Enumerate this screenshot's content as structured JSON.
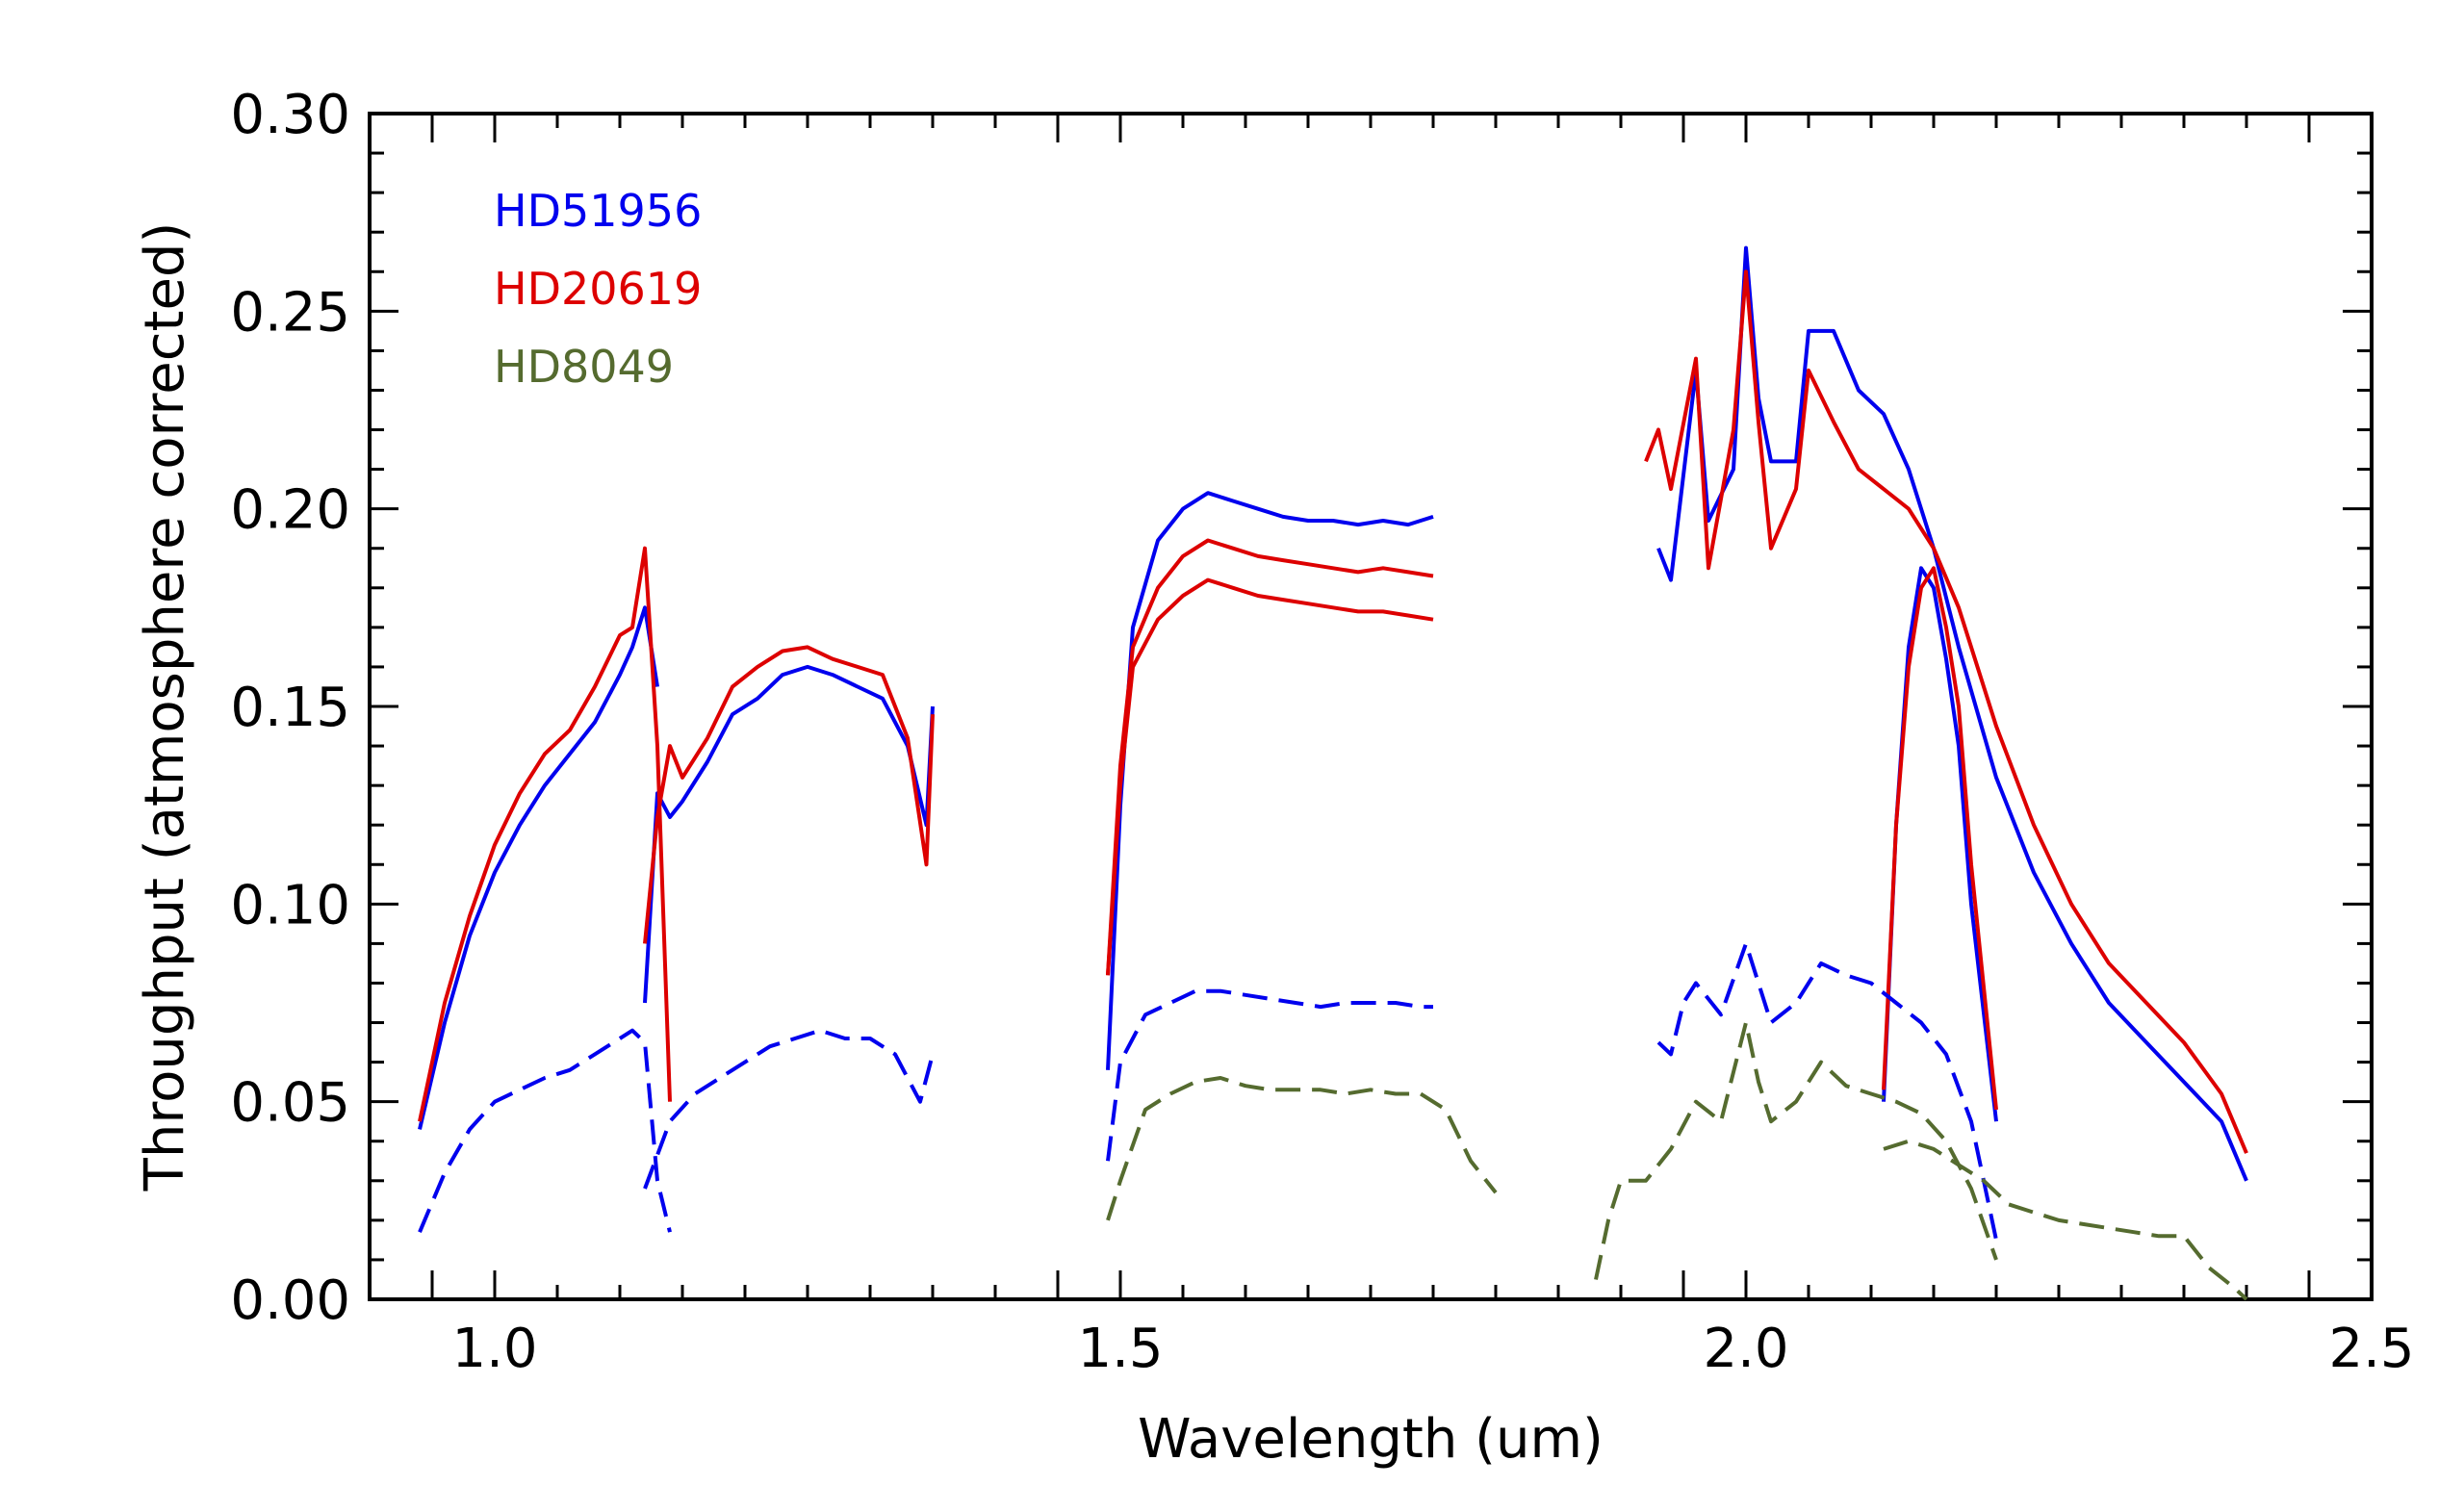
{
  "chart_data": {
    "type": "line",
    "title": "",
    "xlabel": "Wavelength (um)",
    "ylabel": "Throughput (atmosphere corrected)",
    "xlim": [
      0.9,
      2.5
    ],
    "ylim": [
      0.0,
      0.3
    ],
    "xticks": [
      1.0,
      1.5,
      2.0,
      2.5
    ],
    "xtick_labels": [
      "1.0",
      "1.5",
      "2.0",
      "2.5"
    ],
    "yticks": [
      0.0,
      0.05,
      0.1,
      0.15,
      0.2,
      0.25,
      0.3
    ],
    "ytick_labels": [
      "0.00",
      "0.05",
      "0.10",
      "0.15",
      "0.20",
      "0.25",
      "0.30"
    ],
    "grid": false,
    "legend_position": "top-left",
    "colors": {
      "HD51956": "#0000ee",
      "HD20619": "#dd0000",
      "HD8049": "#556b2f"
    },
    "legend": [
      {
        "label": "HD51956",
        "color": "#0000ee"
      },
      {
        "label": "HD20619",
        "color": "#dd0000"
      },
      {
        "label": "HD8049",
        "color": "#556b2f"
      }
    ],
    "series": [
      {
        "color": "#0000ee",
        "style": "solid",
        "x": [
          0.94,
          0.96,
          0.98,
          1.0,
          1.02,
          1.04,
          1.06,
          1.08,
          1.1,
          1.11,
          1.12,
          1.13
        ],
        "y": [
          0.043,
          0.07,
          0.092,
          0.108,
          0.12,
          0.13,
          0.138,
          0.146,
          0.158,
          0.165,
          0.175,
          0.155
        ]
      },
      {
        "color": "#0000ee",
        "style": "solid",
        "x": [
          1.12,
          1.13,
          1.14,
          1.15,
          1.17,
          1.19,
          1.21,
          1.23,
          1.25,
          1.27,
          1.29,
          1.31,
          1.33,
          1.345,
          1.35
        ],
        "y": [
          0.075,
          0.128,
          0.122,
          0.126,
          0.136,
          0.148,
          0.152,
          0.158,
          0.16,
          0.158,
          0.155,
          0.152,
          0.14,
          0.12,
          0.15
        ]
      },
      {
        "color": "#0000ee",
        "style": "solid",
        "x": [
          1.49,
          1.5,
          1.51,
          1.53,
          1.55,
          1.57,
          1.59,
          1.61,
          1.63,
          1.65,
          1.67,
          1.69,
          1.71,
          1.73,
          1.75
        ],
        "y": [
          0.058,
          0.125,
          0.17,
          0.192,
          0.2,
          0.204,
          0.202,
          0.2,
          0.198,
          0.197,
          0.197,
          0.196,
          0.197,
          0.196,
          0.198
        ]
      },
      {
        "color": "#0000ee",
        "style": "solid",
        "x": [
          1.93,
          1.94,
          1.96,
          1.97,
          1.99,
          2.0,
          2.01,
          2.02,
          2.04,
          2.05,
          2.07,
          2.09,
          2.11,
          2.13,
          2.15,
          2.17,
          2.2,
          2.23,
          2.26,
          2.29,
          2.32,
          2.35,
          2.38,
          2.4
        ],
        "y": [
          0.19,
          0.182,
          0.235,
          0.197,
          0.21,
          0.266,
          0.228,
          0.212,
          0.212,
          0.245,
          0.245,
          0.23,
          0.224,
          0.21,
          0.19,
          0.165,
          0.132,
          0.108,
          0.09,
          0.075,
          0.065,
          0.055,
          0.045,
          0.03
        ]
      },
      {
        "color": "#0000ee",
        "style": "solid",
        "x": [
          2.11,
          2.12,
          2.13,
          2.14,
          2.15,
          2.16,
          2.17,
          2.18,
          2.2
        ],
        "y": [
          0.05,
          0.12,
          0.165,
          0.185,
          0.18,
          0.162,
          0.14,
          0.1,
          0.045
        ]
      },
      {
        "color": "#dd0000",
        "style": "solid",
        "x": [
          0.94,
          0.96,
          0.98,
          1.0,
          1.02,
          1.04,
          1.06,
          1.08,
          1.1,
          1.11,
          1.12,
          1.13,
          1.14
        ],
        "y": [
          0.045,
          0.075,
          0.097,
          0.115,
          0.128,
          0.138,
          0.144,
          0.155,
          0.168,
          0.17,
          0.19,
          0.14,
          0.05
        ]
      },
      {
        "color": "#dd0000",
        "style": "solid",
        "x": [
          1.12,
          1.13,
          1.14,
          1.15,
          1.17,
          1.19,
          1.21,
          1.23,
          1.25,
          1.27,
          1.29,
          1.31,
          1.33,
          1.345,
          1.35
        ],
        "y": [
          0.09,
          0.122,
          0.14,
          0.132,
          0.142,
          0.155,
          0.16,
          0.164,
          0.165,
          0.162,
          0.16,
          0.158,
          0.142,
          0.11,
          0.148
        ]
      },
      {
        "color": "#dd0000",
        "style": "solid",
        "x": [
          1.49,
          1.5,
          1.51,
          1.53,
          1.55,
          1.57,
          1.59,
          1.61,
          1.63,
          1.65,
          1.67,
          1.69,
          1.71,
          1.73,
          1.75
        ],
        "y": [
          0.082,
          0.135,
          0.165,
          0.18,
          0.188,
          0.192,
          0.19,
          0.188,
          0.187,
          0.186,
          0.185,
          0.184,
          0.185,
          0.184,
          0.183
        ]
      },
      {
        "color": "#dd0000",
        "style": "solid",
        "x": [
          1.49,
          1.5,
          1.51,
          1.53,
          1.55,
          1.57,
          1.59,
          1.61,
          1.63,
          1.65,
          1.67,
          1.69,
          1.71,
          1.73,
          1.75
        ],
        "y": [
          0.082,
          0.13,
          0.16,
          0.172,
          0.178,
          0.182,
          0.18,
          0.178,
          0.177,
          0.176,
          0.175,
          0.174,
          0.174,
          0.173,
          0.172
        ]
      },
      {
        "color": "#dd0000",
        "style": "solid",
        "x": [
          1.92,
          1.93,
          1.94,
          1.96,
          1.97,
          1.99,
          2.0,
          2.01,
          2.02,
          2.04,
          2.05,
          2.07,
          2.09,
          2.11,
          2.13,
          2.15,
          2.17,
          2.2,
          2.23,
          2.26,
          2.29,
          2.32,
          2.35,
          2.38,
          2.4
        ],
        "y": [
          0.212,
          0.22,
          0.205,
          0.238,
          0.185,
          0.22,
          0.26,
          0.222,
          0.19,
          0.205,
          0.235,
          0.222,
          0.21,
          0.205,
          0.2,
          0.19,
          0.175,
          0.145,
          0.12,
          0.1,
          0.085,
          0.075,
          0.065,
          0.052,
          0.037
        ]
      },
      {
        "color": "#dd0000",
        "style": "solid",
        "x": [
          2.11,
          2.12,
          2.13,
          2.14,
          2.15,
          2.16,
          2.17,
          2.18,
          2.2
        ],
        "y": [
          0.053,
          0.12,
          0.16,
          0.18,
          0.185,
          0.17,
          0.15,
          0.11,
          0.048
        ]
      },
      {
        "color": "#0000ee",
        "style": "dashed",
        "x": [
          0.94,
          0.96,
          0.98,
          1.0,
          1.02,
          1.04,
          1.06,
          1.08,
          1.1,
          1.11,
          1.12,
          1.13,
          1.14
        ],
        "y": [
          0.017,
          0.032,
          0.043,
          0.05,
          0.053,
          0.056,
          0.058,
          0.062,
          0.066,
          0.068,
          0.065,
          0.03,
          0.017
        ]
      },
      {
        "color": "#0000ee",
        "style": "dashed",
        "x": [
          1.12,
          1.14,
          1.16,
          1.18,
          1.2,
          1.22,
          1.24,
          1.26,
          1.28,
          1.3,
          1.32,
          1.34,
          1.35
        ],
        "y": [
          0.028,
          0.045,
          0.052,
          0.056,
          0.06,
          0.064,
          0.066,
          0.068,
          0.066,
          0.066,
          0.062,
          0.05,
          0.062
        ]
      },
      {
        "color": "#0000ee",
        "style": "dashed",
        "x": [
          1.49,
          1.5,
          1.52,
          1.54,
          1.56,
          1.58,
          1.6,
          1.62,
          1.64,
          1.66,
          1.68,
          1.7,
          1.72,
          1.74,
          1.75
        ],
        "y": [
          0.035,
          0.06,
          0.072,
          0.075,
          0.078,
          0.078,
          0.077,
          0.076,
          0.075,
          0.074,
          0.075,
          0.075,
          0.075,
          0.074,
          0.074
        ]
      },
      {
        "color": "#0000ee",
        "style": "dashed",
        "x": [
          1.93,
          1.94,
          1.95,
          1.96,
          1.98,
          2.0,
          2.01,
          2.02,
          2.04,
          2.06,
          2.08,
          2.1,
          2.12,
          2.14,
          2.16,
          2.18,
          2.2
        ],
        "y": [
          0.065,
          0.062,
          0.075,
          0.08,
          0.072,
          0.09,
          0.08,
          0.07,
          0.075,
          0.085,
          0.082,
          0.08,
          0.075,
          0.07,
          0.062,
          0.045,
          0.015
        ]
      },
      {
        "color": "#556b2f",
        "style": "dashed",
        "x": [
          1.49,
          1.5,
          1.52,
          1.54,
          1.56,
          1.58,
          1.6,
          1.62,
          1.64,
          1.66,
          1.68,
          1.7,
          1.72,
          1.74,
          1.76,
          1.78,
          1.8
        ],
        "y": [
          0.02,
          0.03,
          0.048,
          0.052,
          0.055,
          0.056,
          0.054,
          0.053,
          0.053,
          0.053,
          0.052,
          0.053,
          0.052,
          0.052,
          0.048,
          0.035,
          0.027
        ]
      },
      {
        "color": "#556b2f",
        "style": "dashed",
        "x": [
          1.88,
          1.89,
          1.9,
          1.92,
          1.94,
          1.96,
          1.98,
          2.0,
          2.01,
          2.02,
          2.04,
          2.06,
          2.08,
          2.1,
          2.12,
          2.14,
          2.16,
          2.18,
          2.2
        ],
        "y": [
          0.005,
          0.02,
          0.03,
          0.03,
          0.038,
          0.05,
          0.045,
          0.07,
          0.055,
          0.045,
          0.05,
          0.06,
          0.054,
          0.052,
          0.05,
          0.047,
          0.04,
          0.028,
          0.01
        ]
      },
      {
        "color": "#556b2f",
        "style": "dashed",
        "x": [
          2.11,
          2.13,
          2.15,
          2.17,
          2.19,
          2.21,
          2.23,
          2.25,
          2.27,
          2.29,
          2.31,
          2.33,
          2.35,
          2.37,
          2.39,
          2.4
        ],
        "y": [
          0.038,
          0.04,
          0.038,
          0.034,
          0.03,
          0.024,
          0.022,
          0.02,
          0.019,
          0.018,
          0.017,
          0.016,
          0.016,
          0.008,
          0.003,
          0.0
        ]
      }
    ]
  }
}
